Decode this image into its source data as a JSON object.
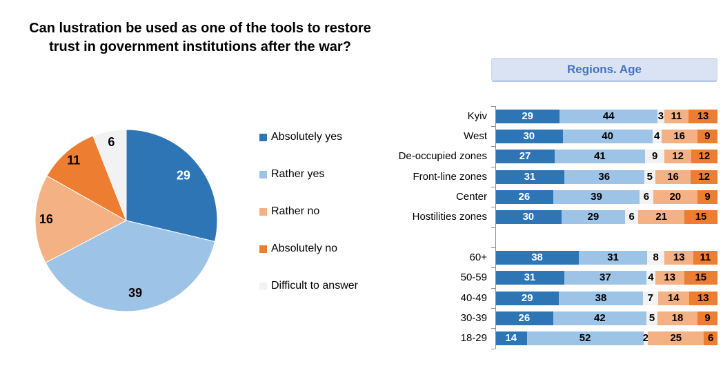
{
  "title": {
    "line1": "Can lustration be used as one of the tools to restore",
    "line2": "trust in government institutions after the war?"
  },
  "panel_header": {
    "label": "Regions. Age"
  },
  "colors": {
    "absolutely_yes": "#2E75B6",
    "rather_yes": "#9DC3E6",
    "rather_no": "#F4B183",
    "absolutely_no": "#ED7D31",
    "difficult": "#F2F2F2",
    "header_text": "#4472C4",
    "header_bg": "#DAE3F4",
    "axis": "#8C8C8C"
  },
  "legend": {
    "items": [
      {
        "label": "Absolutely yes",
        "color": "#2E75B6"
      },
      {
        "label": "Rather yes",
        "color": "#9DC3E6"
      },
      {
        "label": "Rather no",
        "color": "#F4B183"
      },
      {
        "label": "Absolutely no",
        "color": "#ED7D31"
      },
      {
        "label": "Difficult to answer",
        "color": "#F2F2F2"
      }
    ]
  },
  "chart_data": [
    {
      "type": "pie",
      "title": "Can lustration be used as one of the tools to restore trust in government institutions after the war?",
      "start_angle_deg": 0,
      "direction": "clockwise",
      "slices": [
        {
          "label": "Absolutely yes",
          "value": 29,
          "color": "#2E75B6",
          "text_color": "#FFFFFF"
        },
        {
          "label": "Rather yes",
          "value": 39,
          "color": "#9DC3E6",
          "text_color": "#000000"
        },
        {
          "label": "Rather no",
          "value": 16,
          "color": "#F4B183",
          "text_color": "#000000"
        },
        {
          "label": "Absolutely no",
          "value": 11,
          "color": "#ED7D31",
          "text_color": "#000000"
        },
        {
          "label": "Difficult to answer",
          "value": 6,
          "color": "#F2F2F2",
          "text_color": "#000000"
        }
      ]
    },
    {
      "type": "bar",
      "variant": "horizontal-100pct-stacked",
      "title": "Regions. Age",
      "categories": [
        "Kyiv",
        "West",
        "De-occupied zones",
        "Front-line zones",
        "Center",
        "Hostilities zones",
        "",
        "60+",
        "50-59",
        "40-49",
        "30-39",
        "18-29"
      ],
      "segment_order_note": "left-to-right in each bar: Absolutely yes, Rather yes, Difficult to answer, Rather no, Absolutely no",
      "series": [
        {
          "name": "Absolutely yes",
          "color": "#2E75B6",
          "text_color": "#FFFFFF",
          "values": [
            29,
            30,
            27,
            31,
            26,
            30,
            null,
            38,
            31,
            29,
            26,
            14
          ]
        },
        {
          "name": "Rather yes",
          "color": "#9DC3E6",
          "text_color": "#000000",
          "values": [
            44,
            40,
            41,
            36,
            39,
            29,
            null,
            31,
            37,
            38,
            42,
            52
          ]
        },
        {
          "name": "Difficult to answer",
          "color": "#F2F2F2",
          "text_color": "#000000",
          "values": [
            3,
            4,
            9,
            5,
            6,
            6,
            null,
            8,
            4,
            7,
            5,
            2
          ]
        },
        {
          "name": "Rather no",
          "color": "#F4B183",
          "text_color": "#000000",
          "values": [
            11,
            16,
            12,
            16,
            20,
            21,
            null,
            13,
            13,
            14,
            18,
            25
          ]
        },
        {
          "name": "Absolutely no",
          "color": "#ED7D31",
          "text_color": "#000000",
          "values": [
            13,
            9,
            12,
            12,
            9,
            15,
            null,
            11,
            15,
            13,
            9,
            6
          ]
        }
      ]
    }
  ]
}
